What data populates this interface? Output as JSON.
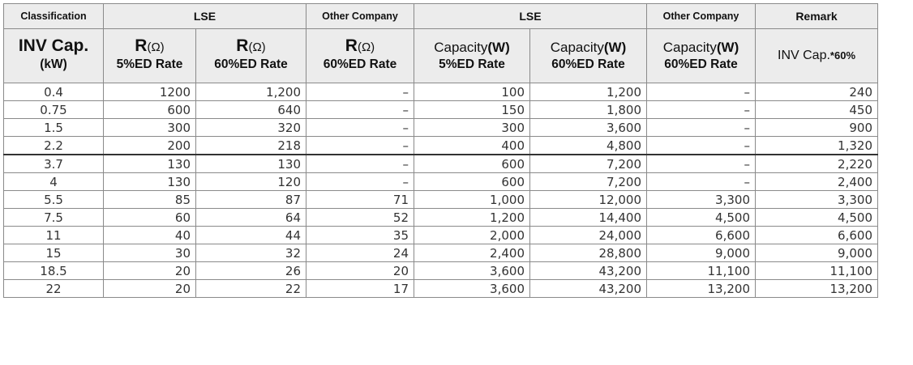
{
  "header": {
    "row1": {
      "classification": "Classification",
      "lse_r": "LSE",
      "other_r": "Other Company",
      "lse_cap": "LSE",
      "other_cap": "Other Company",
      "remark": "Remark"
    },
    "row2": {
      "inv_cap": "INV Cap.",
      "r_symbol": "R",
      "ohm_unit": "(Ω)",
      "capacity_label": "Capacity",
      "w_unit": "(W)",
      "remark_text": "INV Cap.",
      "remark_suffix": "*60%"
    },
    "row3": {
      "kw": "(kW)",
      "rate_5": "5%ED Rate",
      "rate_60": "60%ED Rate"
    }
  },
  "rows": [
    [
      "0.4",
      "1200",
      "1,200",
      "–",
      "100",
      "1,200",
      "–",
      "240"
    ],
    [
      "0.75",
      "600",
      "640",
      "–",
      "150",
      "1,800",
      "–",
      "450"
    ],
    [
      "1.5",
      "300",
      "320",
      "–",
      "300",
      "3,600",
      "–",
      "900"
    ],
    [
      "2.2",
      "200",
      "218",
      "–",
      "400",
      "4,800",
      "–",
      "1,320"
    ],
    [
      "3.7",
      "130",
      "130",
      "–",
      "600",
      "7,200",
      "–",
      "2,220"
    ],
    [
      "4",
      "130",
      "120",
      "–",
      "600",
      "7,200",
      "–",
      "2,400"
    ],
    [
      "5.5",
      "85",
      "87",
      "71",
      "1,000",
      "12,000",
      "3,300",
      "3,300"
    ],
    [
      "7.5",
      "60",
      "64",
      "52",
      "1,200",
      "14,400",
      "4,500",
      "4,500"
    ],
    [
      "11",
      "40",
      "44",
      "35",
      "2,000",
      "24,000",
      "6,600",
      "6,600"
    ],
    [
      "15",
      "30",
      "32",
      "24",
      "2,400",
      "28,800",
      "9,000",
      "9,000"
    ],
    [
      "18.5",
      "20",
      "26",
      "20",
      "3,600",
      "43,200",
      "11,100",
      "11,100"
    ],
    [
      "22",
      "20",
      "22",
      "17",
      "3,600",
      "43,200",
      "13,200",
      "13,200"
    ]
  ]
}
